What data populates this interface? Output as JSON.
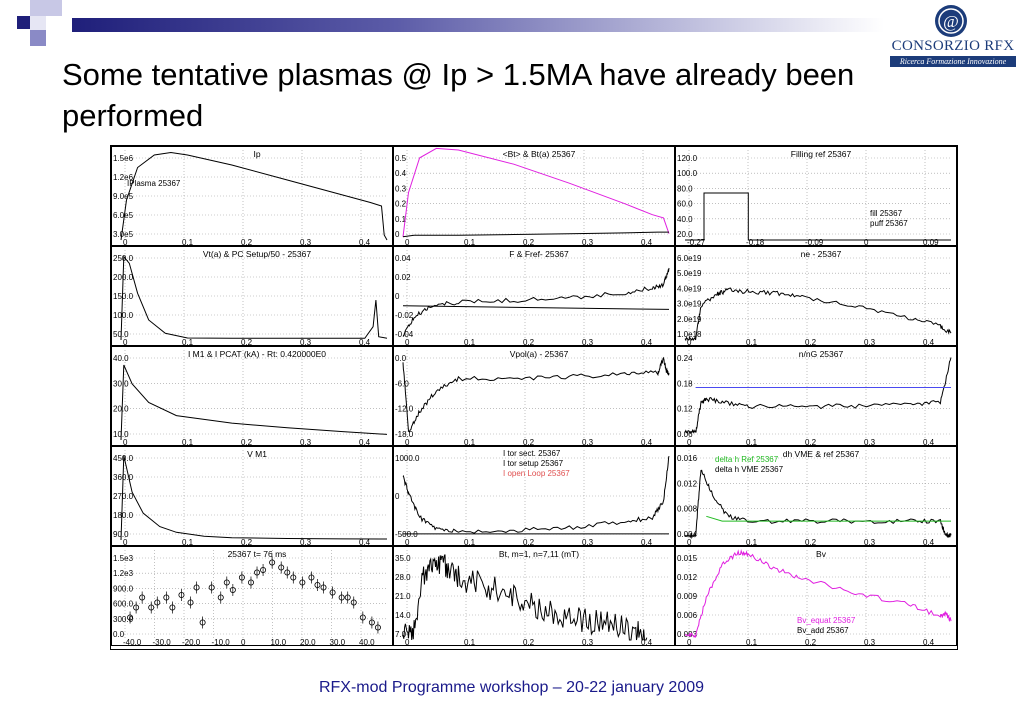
{
  "title": "Some tentative plasmas @ Ip > 1.5MA have already been performed",
  "footer": "RFX-mod Programme workshop – 20-22 january 2009",
  "logo": {
    "name": "CONSORZIO RFX",
    "tagline": "Ricerca Formazione Innovazione",
    "emblem_text": "@"
  },
  "colors": {
    "accent": "#1f1f7a",
    "series_black": "#000000",
    "series_magenta": "#e020e0",
    "series_blue": "#4a4af0",
    "series_green": "#22bb22",
    "series_red_label": "#e05050"
  },
  "chart_data": [
    {
      "type": "line",
      "title": "Ip",
      "xticks": [
        "0",
        "0.1",
        "0.2",
        "0.3",
        "0.4"
      ],
      "yticks": [
        "3.0e5",
        "6.0e5",
        "9.0e5",
        "1.2e6",
        "1.5e6"
      ],
      "xlim": [
        0,
        0.48
      ],
      "ylim": [
        0,
        1800000
      ],
      "legend": [
        "IPlasma 25367"
      ],
      "series": [
        {
          "name": "IPlasma 25367",
          "x": [
            0,
            0.01,
            0.03,
            0.06,
            0.09,
            0.12,
            0.2,
            0.3,
            0.4,
            0.45,
            0.47,
            0.475,
            0.48
          ],
          "y": [
            0,
            800000,
            1450000,
            1700000,
            1750000,
            1700000,
            1500000,
            1200000,
            900000,
            750000,
            680000,
            100000,
            0
          ]
        }
      ]
    },
    {
      "type": "line",
      "title": "<Bt> & Bt(a)  25367",
      "xticks": [
        "0",
        "0.1",
        "0.2",
        "0.3",
        "0.4"
      ],
      "yticks": [
        "0",
        "0.1",
        "0.2",
        "0.3",
        "0.4",
        "0.5"
      ],
      "xlim": [
        0,
        0.48
      ],
      "ylim": [
        -0.02,
        0.55
      ],
      "series": [
        {
          "x": [
            0,
            0.01,
            0.03,
            0.06,
            0.1,
            0.2,
            0.3,
            0.4,
            0.45,
            0.47,
            0.48
          ],
          "y": [
            0,
            0.28,
            0.5,
            0.56,
            0.55,
            0.46,
            0.34,
            0.21,
            0.14,
            0.12,
            0.02
          ]
        },
        {
          "x": [
            0,
            0.02,
            0.1,
            0.2,
            0.3,
            0.4,
            0.46,
            0.48
          ],
          "y": [
            0,
            0.01,
            0.01,
            0.015,
            0.02,
            0.025,
            0.03,
            0.03
          ]
        }
      ]
    },
    {
      "type": "line",
      "title": "Filling ref  25367",
      "xticks": [
        "-0.27",
        "-0.18",
        "-0.09",
        "0",
        "0.09"
      ],
      "yticks": [
        "20.0",
        "40.0",
        "60.0",
        "80.0",
        "100.0",
        "120.0"
      ],
      "xlim": [
        -0.3,
        0.12
      ],
      "ylim": [
        15,
        130
      ],
      "legend": [
        "fill 25367",
        "puff 25367"
      ],
      "series": [
        {
          "name": "fill 25367",
          "x": [
            -0.3,
            -0.27,
            -0.27,
            -0.2,
            -0.2,
            0.12
          ],
          "y": [
            15,
            15,
            75,
            75,
            15,
            15
          ]
        }
      ]
    },
    {
      "type": "line",
      "title": "Vt(a) & PC Setup/50 - 25367",
      "xticks": [
        "0",
        "0.1",
        "0.2",
        "0.3",
        "0.4"
      ],
      "yticks": [
        "50.0",
        "100.0",
        "150.0",
        "200.0",
        "250.0"
      ],
      "xlim": [
        0,
        0.48
      ],
      "ylim": [
        0,
        270
      ],
      "series": [
        {
          "x": [
            0,
            0.005,
            0.015,
            0.03,
            0.05,
            0.08,
            0.12,
            0.2,
            0.3,
            0.44,
            0.455,
            0.46,
            0.465,
            0.48
          ],
          "y": [
            0,
            250,
            230,
            140,
            60,
            20,
            6,
            5,
            5,
            5,
            40,
            120,
            10,
            5
          ]
        }
      ]
    },
    {
      "type": "line",
      "title": "F & Fref- 25367",
      "xticks": [
        "0",
        "0.1",
        "0.2",
        "0.3",
        "0.4"
      ],
      "yticks": [
        "-0.04",
        "-0.02",
        "0",
        "0.02",
        "0.04"
      ],
      "xlim": [
        0,
        0.48
      ],
      "ylim": [
        -0.05,
        0.05
      ],
      "series": [
        {
          "x": [
            0,
            0.02,
            0.05,
            0.1,
            0.2,
            0.3,
            0.4,
            0.45,
            0.47,
            0.48
          ],
          "y": [
            -0.045,
            -0.025,
            -0.012,
            -0.008,
            -0.006,
            -0.003,
            0.002,
            0.008,
            0.012,
            0.03
          ]
        },
        {
          "x": [
            0,
            0.48
          ],
          "y": [
            -0.012,
            -0.016
          ]
        }
      ]
    },
    {
      "type": "line",
      "title": "ne - 25367",
      "xticks": [
        "0",
        "0.1",
        "0.2",
        "0.3",
        "0.4"
      ],
      "yticks": [
        "1.0e18",
        "2.0e19",
        "3.0e19",
        "4.0e19",
        "5.0e19",
        "6.0e19"
      ],
      "xlim": [
        -0.02,
        0.48
      ],
      "ylim": [
        0,
        6.5e+19
      ],
      "series": [
        {
          "x": [
            -0.02,
            0.0,
            0.01,
            0.04,
            0.06,
            0.1,
            0.15,
            0.2,
            0.3,
            0.4,
            0.46,
            0.48
          ],
          "y": [
            1e+18,
            1e+18,
            2.5e+19,
            3.3e+19,
            3.6e+19,
            3.5e+19,
            3.4e+19,
            3.1e+19,
            2.5e+19,
            1.6e+19,
            1e+19,
            5e+18
          ]
        }
      ]
    },
    {
      "type": "line",
      "title": "I M1 & I PCAT (kA) - Rt:      0.420000E0",
      "xticks": [
        "0",
        "0.1",
        "0.2",
        "0.3",
        "0.4"
      ],
      "yticks": [
        "10.0",
        "20.0",
        "30.0",
        "40.0"
      ],
      "xlim": [
        0,
        0.48
      ],
      "ylim": [
        0,
        48
      ],
      "series": [
        {
          "x": [
            0,
            0.005,
            0.02,
            0.05,
            0.1,
            0.2,
            0.3,
            0.4,
            0.48
          ],
          "y": [
            0,
            40,
            30,
            20,
            13,
            9,
            6.5,
            4.5,
            3
          ]
        }
      ]
    },
    {
      "type": "line",
      "title": "Vpol(a) - 25367",
      "xticks": [
        "0",
        "0.1",
        "0.2",
        "0.3",
        "0.4"
      ],
      "yticks": [
        "-18.0",
        "-12.0",
        "-6.0",
        "0.0"
      ],
      "xlim": [
        0,
        0.48
      ],
      "ylim": [
        -19,
        3
      ],
      "series": [
        {
          "x": [
            0,
            0.01,
            0.03,
            0.06,
            0.1,
            0.2,
            0.3,
            0.4,
            0.46,
            0.47,
            0.475,
            0.48
          ],
          "y": [
            0,
            -17,
            -12,
            -7,
            -4,
            -4,
            -3.5,
            -3,
            -2.5,
            1,
            -2,
            -3
          ]
        }
      ]
    },
    {
      "type": "line",
      "title": "n/nG  25367",
      "xticks": [
        "0",
        "0.1",
        "0.2",
        "0.3",
        "0.4"
      ],
      "yticks": [
        "0.06",
        "0.12",
        "0.18",
        "0.24"
      ],
      "xlim": [
        -0.02,
        0.48
      ],
      "ylim": [
        0.04,
        0.28
      ],
      "series": [
        {
          "x": [
            -0.02,
            0.0,
            0.01,
            0.02,
            0.05,
            0.1,
            0.2,
            0.3,
            0.4,
            0.46,
            0.48
          ],
          "y": [
            0.06,
            0.06,
            0.14,
            0.15,
            0.14,
            0.13,
            0.13,
            0.13,
            0.135,
            0.14,
            0.26
          ]
        },
        {
          "x": [
            0.0,
            0.48
          ],
          "y": [
            0.18,
            0.18
          ]
        }
      ]
    },
    {
      "type": "line",
      "title": "V M1",
      "xticks": [
        "0",
        "0.1",
        "0.2",
        "0.3",
        "0.4"
      ],
      "yticks": [
        "90.0",
        "180.0",
        "270.0",
        "360.0",
        "450.0"
      ],
      "xlim": [
        0,
        0.48
      ],
      "ylim": [
        0,
        470
      ],
      "series": [
        {
          "x": [
            0,
            0.005,
            0.02,
            0.04,
            0.07,
            0.1,
            0.15,
            0.2,
            0.3,
            0.4,
            0.48
          ],
          "y": [
            0,
            440,
            250,
            140,
            70,
            40,
            20,
            12,
            8,
            6,
            5
          ]
        }
      ]
    },
    {
      "type": "line",
      "title": "",
      "xticks": [
        "0",
        "0.1",
        "0.2",
        "0.3",
        "0.4"
      ],
      "yticks": [
        "-500.0",
        "0",
        "1000.0"
      ],
      "xlim": [
        0,
        0.48
      ],
      "ylim": [
        -650,
        1550
      ],
      "legend": [
        "I tor sect. 25367",
        "I tor setup 25367",
        "I open Loop 25367"
      ],
      "series": [
        {
          "x": [
            0,
            0.01,
            0.03,
            0.06,
            0.1,
            0.2,
            0.3,
            0.4,
            0.45,
            0.47,
            0.48
          ],
          "y": [
            900,
            500,
            -100,
            -380,
            -450,
            -420,
            -350,
            -200,
            -100,
            300,
            1400
          ]
        },
        {
          "x": [
            0,
            0.48
          ],
          "y": [
            -500,
            -500
          ]
        }
      ]
    },
    {
      "type": "line",
      "title": "dh VME & ref  25367",
      "xticks": [
        "0",
        "0.1",
        "0.2",
        "0.3",
        "0.4"
      ],
      "yticks": [
        "0.004",
        "0.008",
        "0.012",
        "0.016"
      ],
      "xlim": [
        -0.02,
        0.48
      ],
      "ylim": [
        -0.001,
        0.018
      ],
      "legend": [
        "delta h Ref 25367",
        "delta h VME 25367"
      ],
      "series": [
        {
          "name": "delta h VME 25367",
          "x": [
            -0.02,
            0.0,
            0.01,
            0.03,
            0.06,
            0.1,
            0.2,
            0.3,
            0.4,
            0.46,
            0.47,
            0.48
          ],
          "y": [
            0,
            0,
            0.014,
            0.009,
            0.004,
            0.003,
            0.003,
            0.003,
            0.003,
            0.003,
            0,
            0
          ]
        },
        {
          "name": "delta h Ref 25367",
          "x": [
            0.02,
            0.05,
            0.1,
            0.2,
            0.3,
            0.4,
            0.48
          ],
          "y": [
            0.004,
            0.003,
            0.003,
            0.003,
            0.003,
            0.003,
            0.003
          ]
        }
      ]
    },
    {
      "type": "scatter",
      "title": "25367   t=    76 ms",
      "xticks": [
        "-40.0",
        "-30.0",
        "-20.0",
        "-10.0",
        "0",
        "10.0",
        "20.0",
        "30.0",
        "40.0"
      ],
      "yticks": [
        "0.0",
        "300.0",
        "600.0",
        "900.0",
        "1.2e3",
        "1.5e3"
      ],
      "xlim": [
        -45,
        43
      ],
      "ylim": [
        -150,
        1650
      ],
      "series": [
        {
          "x": [
            -42,
            -40,
            -38,
            -35,
            -33,
            -30,
            -28,
            -25,
            -22,
            -20,
            -18,
            -15,
            -12,
            -10,
            -8,
            -5,
            -2,
            0,
            2,
            5,
            8,
            10,
            12,
            15,
            18,
            20,
            22,
            25,
            28,
            30,
            32,
            35,
            38,
            40
          ],
          "y": [
            300,
            500,
            700,
            500,
            600,
            700,
            500,
            750,
            600,
            900,
            200,
            900,
            700,
            1000,
            850,
            1100,
            1000,
            1200,
            1250,
            1400,
            1300,
            1200,
            1100,
            1000,
            1100,
            950,
            900,
            800,
            700,
            700,
            600,
            300,
            200,
            100
          ]
        }
      ]
    },
    {
      "type": "line",
      "title": "Bt, m=1, n=7,11 (mT)",
      "xticks": [
        "0",
        "0.1",
        "0.2",
        "0.3",
        "0.4"
      ],
      "yticks": [
        "7.0",
        "14.0",
        "21.0",
        "28.0",
        "35.0"
      ],
      "xlim": [
        0,
        0.48
      ],
      "ylim": [
        0,
        38
      ],
      "series": [
        {
          "x": [
            0,
            0.02,
            0.04,
            0.06,
            0.08,
            0.1,
            0.14,
            0.18,
            0.22,
            0.26,
            0.3,
            0.34,
            0.38,
            0.42,
            0.44
          ],
          "y": [
            2,
            5,
            30,
            33,
            30,
            26,
            24,
            20,
            16,
            12,
            10,
            8,
            6,
            3,
            1
          ]
        }
      ]
    },
    {
      "type": "line",
      "title": "Bv",
      "xticks": [
        "0",
        "0.1",
        "0.2",
        "0.3",
        "0.4"
      ],
      "yticks": [
        "0.003",
        "0.006",
        "0.009",
        "0.012",
        "0.015"
      ],
      "xlim": [
        -0.02,
        0.48
      ],
      "ylim": [
        -0.001,
        0.018
      ],
      "legend": [
        "Bv_equat 25367",
        "Bv_add 25367"
      ],
      "series": [
        {
          "name": "Bv_equat 25367",
          "x": [
            -0.02,
            0.0,
            0.02,
            0.05,
            0.08,
            0.1,
            0.15,
            0.2,
            0.3,
            0.4,
            0.46,
            0.47,
            0.48
          ],
          "y": [
            0,
            0,
            0.008,
            0.015,
            0.0175,
            0.017,
            0.014,
            0.012,
            0.009,
            0.0065,
            0.004,
            0.0045,
            0.003
          ]
        }
      ]
    }
  ]
}
